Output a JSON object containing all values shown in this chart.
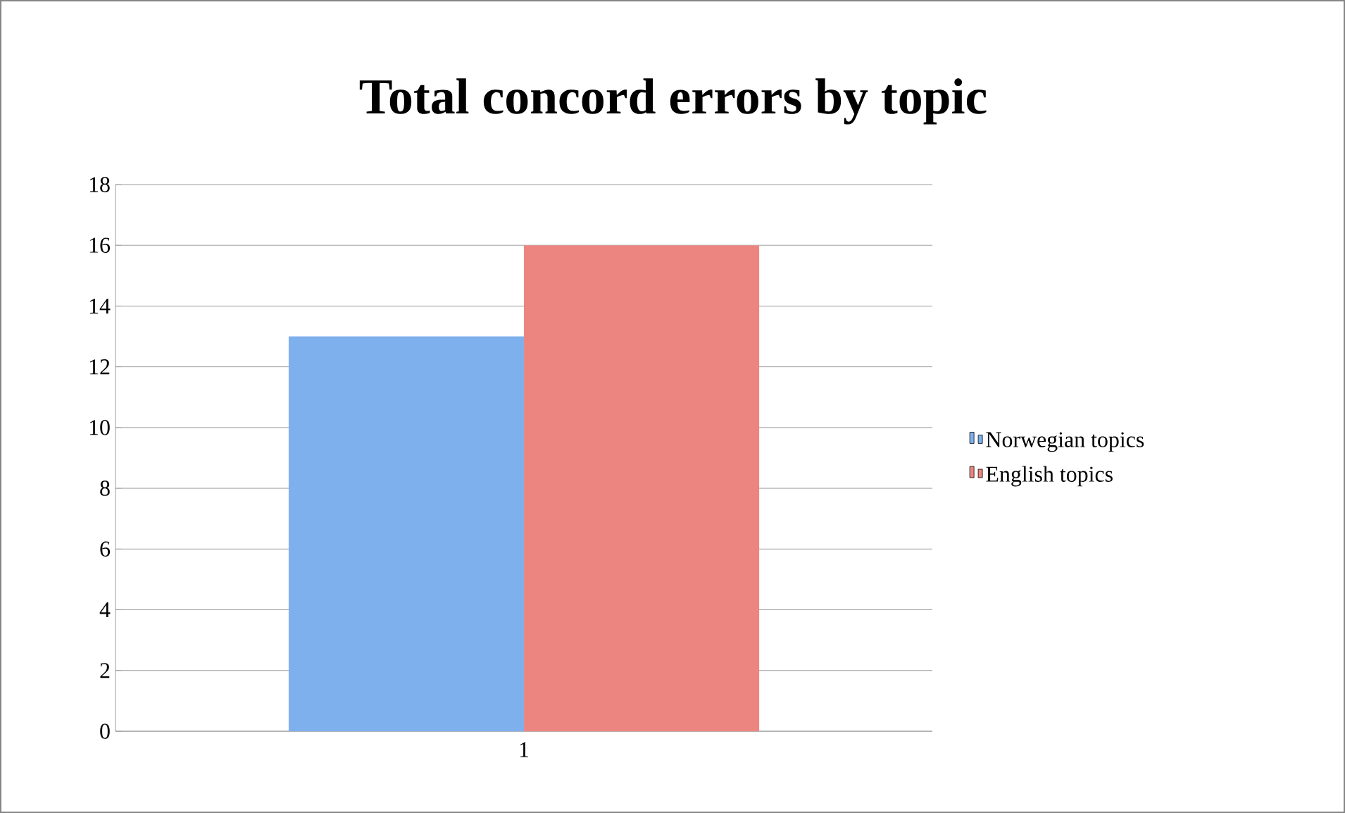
{
  "chart_data": {
    "type": "bar",
    "title": "Total concord errors by topic",
    "categories": [
      "1"
    ],
    "series": [
      {
        "name": "Norwegian topics",
        "color": "#7fb0ee",
        "values": [
          13
        ]
      },
      {
        "name": "English topics",
        "color": "#ec8580",
        "values": [
          16
        ]
      }
    ],
    "ylim": [
      0,
      18
    ],
    "yticks": [
      0,
      2,
      4,
      6,
      8,
      10,
      12,
      14,
      16,
      18
    ],
    "grid": "y",
    "legend": "right"
  }
}
